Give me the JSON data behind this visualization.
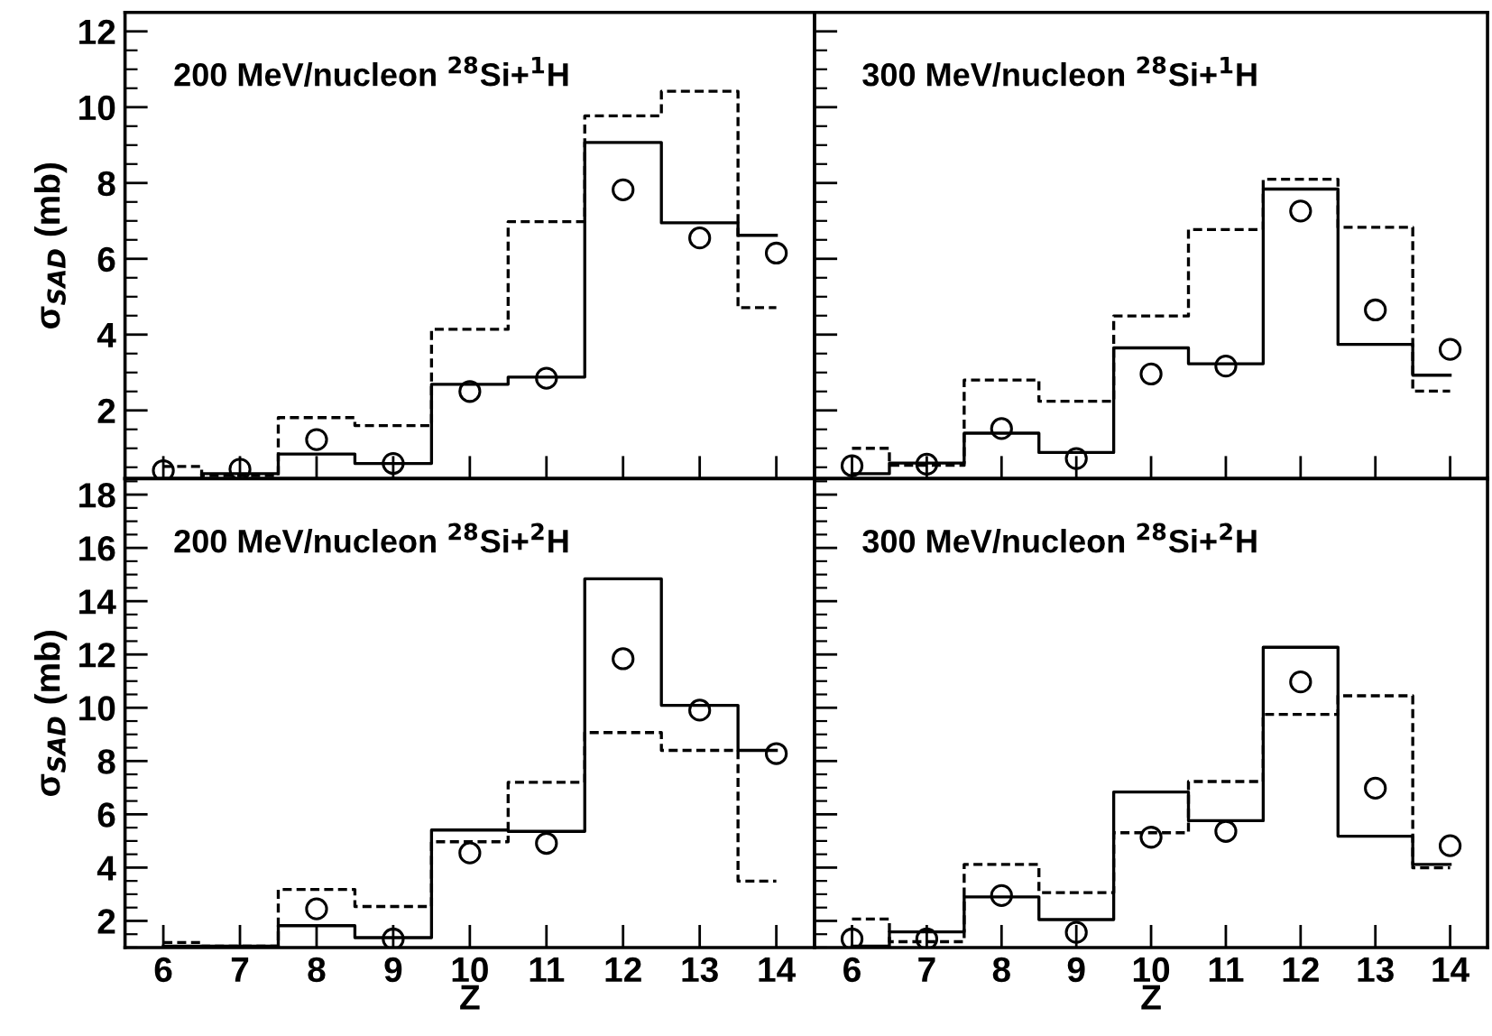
{
  "chart_data": [
    {
      "type": "step",
      "title": "200 MeV/nucleon $^{28}$Si+$^{1}$H",
      "ylabel": "σ$_{SAD}$ (mb)",
      "x": [
        6,
        7,
        8,
        9,
        10,
        11,
        12,
        13,
        14
      ],
      "xlim": [
        5.5,
        14.5
      ],
      "xticks": [
        6,
        7,
        8,
        9,
        10,
        11,
        12,
        13,
        14
      ],
      "ylim": [
        0.2,
        12.5
      ],
      "yticks": [
        2,
        4,
        6,
        8,
        10,
        12
      ],
      "tick_labels": "y",
      "series": [
        {
          "type": "step",
          "color": "#000000",
          "line_style": "solid",
          "values": [
            0.2,
            0.33,
            0.85,
            0.6,
            2.69,
            2.88,
            9.07,
            6.95,
            6.62
          ]
        },
        {
          "type": "step",
          "color": "#000000",
          "line_style": "dashed",
          "values": [
            0.52,
            0.28,
            1.81,
            1.6,
            4.14,
            6.98,
            9.77,
            10.42,
            4.71
          ]
        },
        {
          "type": "scatter",
          "color": "#000000",
          "marker": "circle",
          "values": [
            0.41,
            0.45,
            1.23,
            0.6,
            2.5,
            2.85,
            7.82,
            6.55,
            6.15
          ]
        }
      ]
    },
    {
      "type": "step",
      "title": "300 MeV/nucleon $^{28}$Si+$^{1}$H",
      "x": [
        6,
        7,
        8,
        9,
        10,
        11,
        12,
        13,
        14
      ],
      "xlim": [
        5.5,
        14.5
      ],
      "xticks": [
        6,
        7,
        8,
        9,
        10,
        11,
        12,
        13,
        14
      ],
      "ylim": [
        0.2,
        12.5
      ],
      "yticks": [
        2,
        4,
        6,
        8,
        10,
        12
      ],
      "tick_labels": false,
      "series": [
        {
          "type": "step",
          "color": "#000000",
          "line_style": "solid",
          "values": [
            0.33,
            0.61,
            1.4,
            0.89,
            3.65,
            3.23,
            7.84,
            3.74,
            2.93
          ]
        },
        {
          "type": "step",
          "color": "#000000",
          "line_style": "dashed",
          "values": [
            1.0,
            0.55,
            2.8,
            2.24,
            4.49,
            6.77,
            8.1,
            6.83,
            2.51
          ]
        },
        {
          "type": "scatter",
          "color": "#000000",
          "marker": "circle",
          "values": [
            0.54,
            0.58,
            1.52,
            0.73,
            2.96,
            3.17,
            7.26,
            4.65,
            3.61
          ]
        }
      ]
    },
    {
      "type": "step",
      "title": "200 MeV/nucleon $^{28}$Si+$^{2}$H",
      "xlabel": "Z",
      "ylabel": "σ$_{SAD}$ (mb)",
      "x": [
        6,
        7,
        8,
        9,
        10,
        11,
        12,
        13,
        14
      ],
      "xlim": [
        5.5,
        14.5
      ],
      "xticks": [
        6,
        7,
        8,
        9,
        10,
        11,
        12,
        13,
        14
      ],
      "ylim": [
        1.0,
        18.6
      ],
      "yticks": [
        2,
        4,
        6,
        8,
        10,
        12,
        14,
        16,
        18
      ],
      "series": [
        {
          "type": "step",
          "color": "#000000",
          "line_style": "solid",
          "values": [
            1.05,
            1.05,
            1.82,
            1.37,
            5.41,
            5.36,
            14.84,
            10.09,
            8.4
          ]
        },
        {
          "type": "step",
          "color": "#000000",
          "line_style": "dashed",
          "values": [
            1.19,
            1.05,
            3.18,
            2.54,
            4.97,
            7.2,
            9.07,
            8.4,
            3.49
          ]
        },
        {
          "type": "scatter",
          "color": "#000000",
          "marker": "circle",
          "values": [
            null,
            null,
            2.45,
            1.32,
            4.55,
            4.91,
            11.84,
            9.91,
            8.28
          ]
        }
      ]
    },
    {
      "type": "step",
      "title": "300 MeV/nucleon $^{28}$Si+$^{2}$H",
      "xlabel": "Z",
      "x": [
        6,
        7,
        8,
        9,
        10,
        11,
        12,
        13,
        14
      ],
      "xlim": [
        5.5,
        14.5
      ],
      "xticks": [
        6,
        7,
        8,
        9,
        10,
        11,
        12,
        13,
        14
      ],
      "ylim": [
        1.0,
        18.6
      ],
      "yticks": [
        2,
        4,
        6,
        8,
        10,
        12,
        14,
        16,
        18
      ],
      "tick_labels": "x",
      "series": [
        {
          "type": "step",
          "color": "#000000",
          "line_style": "solid",
          "values": [
            1.05,
            1.59,
            2.9,
            2.05,
            6.84,
            5.76,
            12.27,
            5.18,
            4.12
          ]
        },
        {
          "type": "step",
          "color": "#000000",
          "line_style": "dashed",
          "values": [
            2.07,
            1.22,
            4.12,
            3.06,
            5.31,
            7.23,
            9.75,
            10.45,
            3.99
          ]
        },
        {
          "type": "scatter",
          "color": "#000000",
          "marker": "circle",
          "values": [
            1.32,
            1.32,
            2.95,
            1.57,
            5.14,
            5.36,
            10.97,
            6.98,
            4.82
          ]
        }
      ]
    }
  ]
}
